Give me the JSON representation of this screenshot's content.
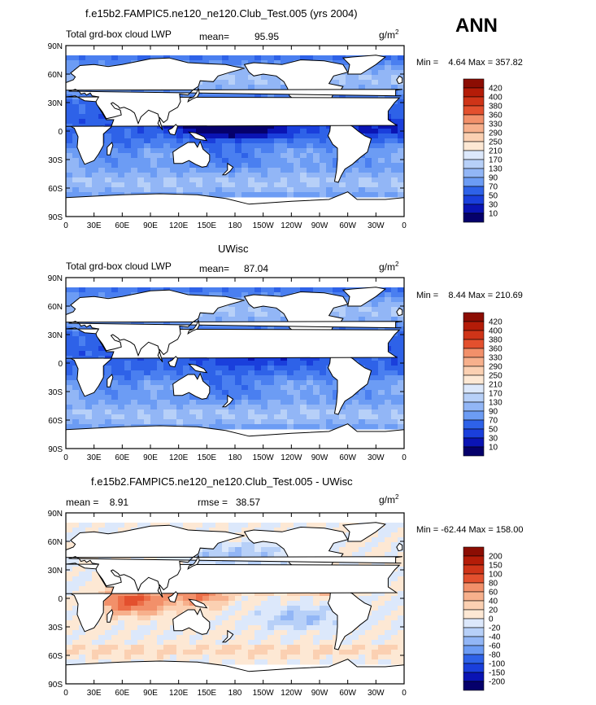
{
  "figure": {
    "season": "ANN",
    "lat_ticks": [
      "90N",
      "60N",
      "30N",
      "0",
      "30S",
      "60S",
      "90S"
    ],
    "lon_ticks": [
      "0",
      "30E",
      "60E",
      "90E",
      "120E",
      "150E",
      "180",
      "150W",
      "120W",
      "90W",
      "60W",
      "30W",
      "0"
    ],
    "colors": {
      "abs_scale": [
        "#05006b",
        "#0a14b4",
        "#1a3fdc",
        "#2e62e8",
        "#4a7ff0",
        "#6c9cf4",
        "#92b6f6",
        "#b7d0f8",
        "#dce8fb",
        "#fde8d4",
        "#fbd0b2",
        "#f7b08c",
        "#f2906a",
        "#ec6e48",
        "#e3502e",
        "#cf3418",
        "#b41c08",
        "#8c0d03"
      ],
      "diff_scale": [
        "#05006b",
        "#0a14b4",
        "#1a3fdc",
        "#2e62e8",
        "#4a7ff0",
        "#6c9cf4",
        "#92b6f6",
        "#b7d0f8",
        "#dce8fb",
        "#fde8d4",
        "#fbd0b2",
        "#f7b08c",
        "#f2906a",
        "#ec6e48",
        "#e3502e",
        "#cf3418",
        "#b41c08",
        "#8c0d03"
      ],
      "land": "#ffffff"
    }
  },
  "chart_data": [
    {
      "type": "heatmap",
      "title": "f.e15b2.FAMPIC5.ne120_ne120.Club_Test.005 (yrs 2004)",
      "left_label": "Total grd-box cloud LWP",
      "mean_label": "mean=",
      "mean_value": "95.95",
      "units": "g/m",
      "units_sup": "2",
      "minmax": "Min =    4.64 Max = 357.82",
      "min": 4.64,
      "max": 357.82,
      "xlim": [
        0,
        360
      ],
      "ylim": [
        -90,
        90
      ],
      "colorbar_levels": [
        "420",
        "400",
        "380",
        "360",
        "330",
        "290",
        "250",
        "210",
        "170",
        "130",
        "90",
        "70",
        "50",
        "30",
        "10"
      ]
    },
    {
      "type": "heatmap",
      "title": "UWisc",
      "left_label": "Total grd-box cloud LWP",
      "mean_label": "mean=",
      "mean_value": "87.04",
      "units": "g/m",
      "units_sup": "2",
      "minmax": "Min =    8.44 Max = 210.69",
      "min": 8.44,
      "max": 210.69,
      "xlim": [
        0,
        360
      ],
      "ylim": [
        -90,
        90
      ],
      "colorbar_levels": [
        "420",
        "400",
        "380",
        "360",
        "330",
        "290",
        "250",
        "210",
        "170",
        "130",
        "90",
        "70",
        "50",
        "30",
        "10"
      ]
    },
    {
      "type": "heatmap",
      "title": "f.e15b2.FAMPIC5.ne120_ne120.Club_Test.005 - UWisc",
      "left_label": "mean =    8.91",
      "rmse_label": "rmse =   38.57",
      "units": "g/m",
      "units_sup": "2",
      "minmax": "Min = -62.44 Max = 158.00",
      "min": -62.44,
      "max": 158.0,
      "mean": 8.91,
      "rmse": 38.57,
      "xlim": [
        0,
        360
      ],
      "ylim": [
        -90,
        90
      ],
      "colorbar_levels": [
        "200",
        "150",
        "100",
        "80",
        "60",
        "40",
        "20",
        "0",
        "-20",
        "-40",
        "-60",
        "-80",
        "-100",
        "-150",
        "-200"
      ]
    }
  ]
}
